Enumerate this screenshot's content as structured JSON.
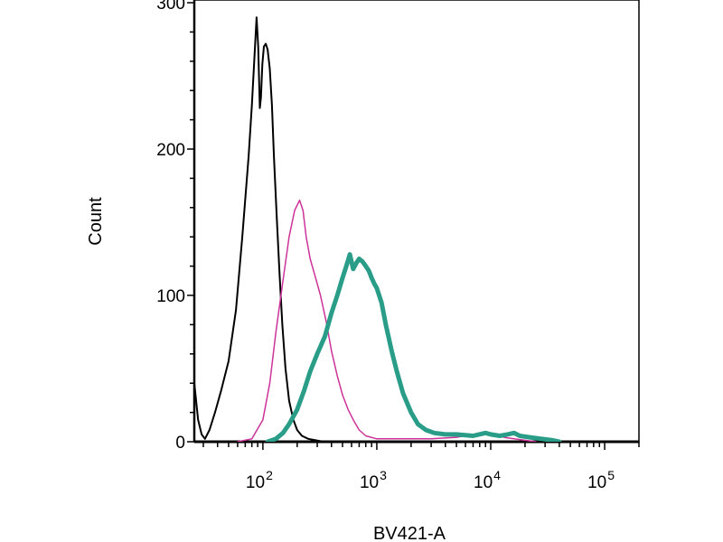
{
  "chart_data": {
    "type": "line",
    "title": "",
    "xlabel": "BV421-A",
    "ylabel": "Count",
    "x_scale": "log",
    "xlim": [
      25,
      200000
    ],
    "ylim": [
      0,
      300
    ],
    "grid": false,
    "legend": "none",
    "x_tick_labels": [
      {
        "value": 100,
        "base": "10",
        "exp": "2"
      },
      {
        "value": 1000,
        "base": "10",
        "exp": "3"
      },
      {
        "value": 10000,
        "base": "10",
        "exp": "4"
      },
      {
        "value": 100000,
        "base": "10",
        "exp": "5"
      }
    ],
    "y_ticks": [
      0,
      100,
      200,
      300
    ],
    "y_tick_labels": [
      "0",
      "100",
      "200",
      "300"
    ],
    "series": [
      {
        "color": "#000000",
        "line_width": 2,
        "x": [
          25,
          27,
          29,
          31,
          34,
          38,
          43,
          50,
          58,
          66,
          75,
          80,
          84,
          88,
          91,
          94,
          96,
          99,
          102,
          106,
          110,
          115,
          120,
          125,
          132,
          140,
          148,
          158,
          170,
          185,
          200,
          220,
          250,
          290,
          340,
          400,
          500,
          700,
          1000
        ],
        "y": [
          40,
          15,
          5,
          2,
          8,
          20,
          35,
          55,
          90,
          140,
          195,
          230,
          260,
          290,
          270,
          228,
          235,
          258,
          270,
          272,
          268,
          255,
          230,
          195,
          155,
          115,
          80,
          50,
          28,
          15,
          8,
          4,
          2,
          1,
          0,
          0,
          0,
          0,
          0
        ]
      },
      {
        "color": "#cc3399",
        "line_width": 1.5,
        "x": [
          60,
          80,
          100,
          115,
          130,
          150,
          170,
          190,
          210,
          225,
          240,
          260,
          290,
          320,
          360,
          400,
          450,
          500,
          560,
          630,
          700,
          800,
          1000,
          1300,
          2000,
          3000,
          5000,
          7000,
          9000,
          11000,
          13000,
          16000,
          20000,
          25000
        ],
        "y": [
          0,
          2,
          15,
          40,
          75,
          110,
          140,
          158,
          165,
          158,
          140,
          125,
          112,
          100,
          82,
          62,
          45,
          32,
          22,
          14,
          8,
          4,
          2,
          2,
          2,
          2,
          3,
          5,
          7,
          5,
          3,
          2,
          1,
          0
        ]
      },
      {
        "color": "#2a9d88",
        "line_width": 5,
        "x": [
          110,
          130,
          150,
          170,
          200,
          230,
          260,
          300,
          350,
          400,
          450,
          500,
          540,
          580,
          620,
          660,
          700,
          750,
          800,
          850,
          900,
          950,
          1000,
          1100,
          1200,
          1350,
          1500,
          1700,
          2000,
          2300,
          2700,
          3200,
          4000,
          5000,
          7000,
          9000,
          10000,
          12000,
          14000,
          16000,
          18000,
          22000,
          28000,
          35000,
          40000
        ],
        "y": [
          0,
          2,
          6,
          12,
          22,
          35,
          48,
          60,
          72,
          88,
          100,
          112,
          120,
          128,
          118,
          122,
          125,
          123,
          120,
          117,
          112,
          108,
          105,
          95,
          80,
          62,
          48,
          33,
          20,
          12,
          8,
          6,
          5,
          5,
          4,
          6,
          5,
          4,
          5,
          6,
          4,
          3,
          2,
          1,
          0
        ]
      }
    ]
  }
}
